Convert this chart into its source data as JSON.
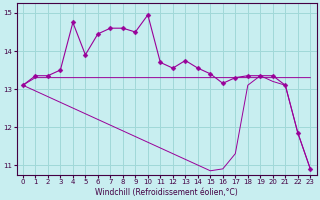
{
  "xlabel": "Windchill (Refroidissement éolien,°C)",
  "background_color": "#c8eef0",
  "grid_color": "#a0d8d8",
  "line_color": "#990099",
  "x_hours": [
    0,
    1,
    2,
    3,
    4,
    5,
    6,
    7,
    8,
    9,
    10,
    11,
    12,
    13,
    14,
    15,
    16,
    17,
    18,
    19,
    20,
    21,
    22,
    23
  ],
  "line1_y": [
    13.1,
    13.35,
    13.35,
    13.5,
    14.75,
    13.9,
    14.45,
    14.6,
    14.6,
    14.5,
    14.95,
    13.7,
    13.55,
    13.75,
    13.55,
    13.4,
    13.15,
    13.3,
    13.35,
    13.35,
    13.35,
    13.1,
    11.85,
    10.9
  ],
  "line2_y": [
    13.1,
    13.3,
    13.3,
    13.3,
    13.3,
    13.3,
    13.3,
    13.3,
    13.3,
    13.3,
    13.3,
    13.3,
    13.3,
    13.3,
    13.3,
    13.3,
    13.3,
    13.3,
    13.3,
    13.3,
    13.3,
    13.3,
    13.3,
    13.3
  ],
  "line3_y": [
    13.1,
    12.95,
    12.8,
    12.65,
    12.5,
    12.35,
    12.2,
    12.05,
    11.9,
    11.75,
    11.6,
    11.45,
    11.3,
    11.15,
    11.0,
    10.85,
    10.9,
    11.3,
    13.1,
    13.35,
    13.2,
    13.1,
    11.85,
    10.9
  ],
  "ylim": [
    10.75,
    15.25
  ],
  "yticks": [
    11,
    12,
    13,
    14,
    15
  ],
  "xlim": [
    -0.5,
    23.5
  ],
  "xtick_fontsize": 5.0,
  "ytick_fontsize": 6.0,
  "xlabel_fontsize": 5.5
}
